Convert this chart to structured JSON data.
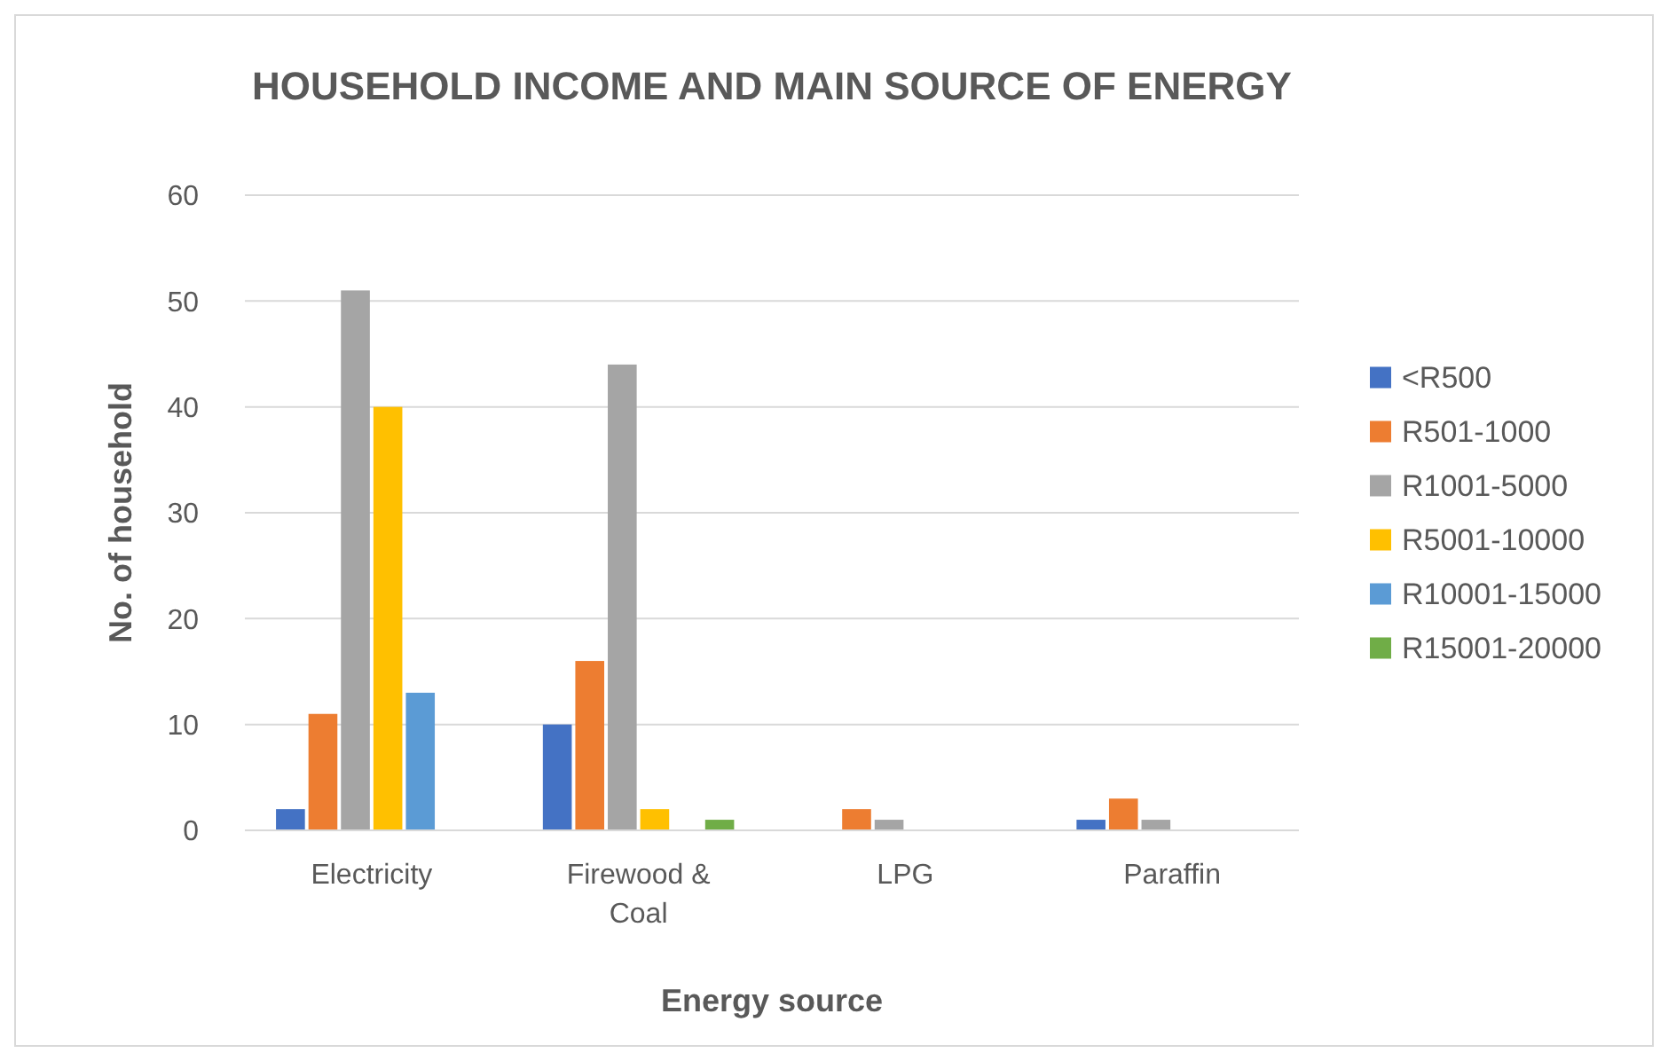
{
  "chart_data": {
    "type": "bar",
    "title": "HOUSEHOLD INCOME AND MAIN SOURCE OF ENERGY",
    "xlabel": "Energy source",
    "ylabel": "No. of household",
    "categories": [
      "Electricity",
      "Firewood & Coal",
      "LPG",
      "Paraffin"
    ],
    "series": [
      {
        "name": "<R500",
        "color": "#4472c4",
        "values": [
          2,
          10,
          0,
          1
        ]
      },
      {
        "name": "R501-1000",
        "color": "#ed7d31",
        "values": [
          11,
          16,
          2,
          3
        ]
      },
      {
        "name": "R1001-5000",
        "color": "#a5a5a5",
        "values": [
          51,
          44,
          1,
          1
        ]
      },
      {
        "name": "R5001-10000",
        "color": "#ffc000",
        "values": [
          40,
          2,
          0,
          0
        ]
      },
      {
        "name": "R10001-15000",
        "color": "#5b9bd5",
        "values": [
          13,
          0,
          0,
          0
        ]
      },
      {
        "name": "R15001-20000",
        "color": "#70ad47",
        "values": [
          0,
          1,
          0,
          0
        ]
      }
    ],
    "ylim": [
      0,
      60
    ],
    "yticks": [
      0,
      10,
      20,
      30,
      40,
      50,
      60
    ],
    "grid": "y",
    "legend": "right"
  }
}
